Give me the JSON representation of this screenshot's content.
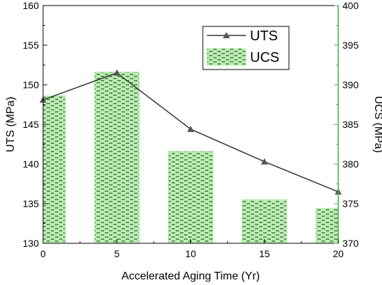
{
  "chart_data": {
    "type": "bar",
    "x_ticks": [
      "0",
      "5",
      "10",
      "15",
      "20"
    ],
    "xlabel": "Accelerated Aging Time (Yr)",
    "xlim": [
      0,
      20
    ],
    "left_axis": {
      "label": "UTS (MPa)",
      "ylim": [
        130,
        160
      ],
      "ticks": [
        "130",
        "135",
        "140",
        "145",
        "150",
        "155",
        "160"
      ],
      "color": "#000000"
    },
    "right_axis": {
      "label": "UCS (MPa)",
      "ylim": [
        370,
        400
      ],
      "ticks": [
        "370",
        "375",
        "380",
        "385",
        "390",
        "395",
        "400"
      ],
      "color": "#3cb44b"
    },
    "series": [
      {
        "name": "UTS",
        "type": "line",
        "axis": "left",
        "marker": "triangle",
        "color": "#333333",
        "x": [
          0,
          5,
          10,
          15,
          20
        ],
        "values": [
          148.1,
          151.5,
          144.4,
          140.3,
          136.5
        ]
      },
      {
        "name": "UCS",
        "type": "bar",
        "axis": "right",
        "fill": "#b8f2b0",
        "hatch": "dashes",
        "x": [
          0,
          5,
          10,
          15,
          20
        ],
        "values": [
          388.6,
          391.6,
          381.6,
          375.5,
          374.4
        ]
      }
    ],
    "legend": {
      "entries": [
        "UTS",
        "UCS"
      ],
      "position": "top-right"
    },
    "grid": false
  }
}
